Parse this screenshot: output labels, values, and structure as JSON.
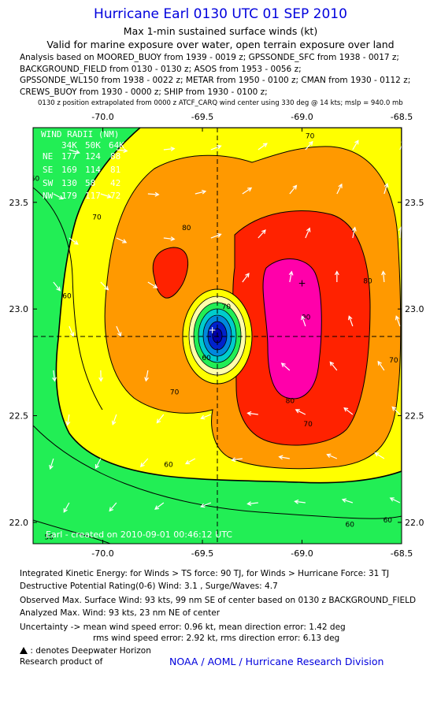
{
  "header": {
    "title": "Hurricane Earl 0130 UTC 01 SEP 2010",
    "subtitle1": "Max 1-min sustained surface winds (kt)",
    "subtitle2": "Valid for marine exposure over water, open terrain exposure over land",
    "analysis_lines": [
      "Analysis based on MOORED_BUOY from 1939 - 0019 z; GPSSONDE_SFC from 1938 - 0017 z;",
      "BACKGROUND_FIELD from 0130 - 0130 z; ASOS from 1953 - 0056 z;",
      "GPSSONDE_WL150 from 1938 - 0022 z; METAR from 1950 - 0100 z; CMAN from 1930 - 0112 z;",
      "CREWS_BUOY from 1930 - 0000 z; SHIP from 1930 - 0100 z;"
    ],
    "position_note": "0130 z position extrapolated from 0000 z ATCF_CARQ wind center using 330 deg @ 14 kts; mslp = 940.0 mb"
  },
  "map": {
    "lon_labels": [
      "-70.0",
      "-69.5",
      "-69.0",
      "-68.5"
    ],
    "lon_values": [
      -70.0,
      -69.5,
      -69.0,
      -68.5
    ],
    "lat_labels": [
      "23.5",
      "23.0",
      "22.5",
      "22.0"
    ],
    "lat_values": [
      23.5,
      23.0,
      22.5,
      22.0
    ],
    "lon_range": [
      -70.35,
      -68.5
    ],
    "lat_range": [
      21.9,
      23.85
    ],
    "center": {
      "lon": -69.45,
      "lat": 22.9
    },
    "max_wind_marker": {
      "lon": -69.0,
      "lat": 23.12
    },
    "contour_labels": [
      {
        "text": "70",
        "lon": -68.96,
        "lat": 23.8
      },
      {
        "text": "70",
        "lon": -70.03,
        "lat": 23.42
      },
      {
        "text": "70",
        "lon": -69.64,
        "lat": 22.6
      },
      {
        "text": "70",
        "lon": -68.97,
        "lat": 22.45
      },
      {
        "text": "70",
        "lon": -68.54,
        "lat": 22.75
      },
      {
        "text": "70",
        "lon": -69.38,
        "lat": 23.0
      },
      {
        "text": "80",
        "lon": -69.58,
        "lat": 23.37
      },
      {
        "text": "80",
        "lon": -69.06,
        "lat": 22.56
      },
      {
        "text": "80",
        "lon": -68.67,
        "lat": 23.12
      },
      {
        "text": "90",
        "lon": -68.98,
        "lat": 22.95
      },
      {
        "text": "60",
        "lon": -69.67,
        "lat": 22.26
      },
      {
        "text": "60",
        "lon": -69.48,
        "lat": 22.76
      },
      {
        "text": "60",
        "lon": -68.76,
        "lat": 21.98
      },
      {
        "text": "60",
        "lon": -68.57,
        "lat": 22.0
      },
      {
        "text": "60",
        "lon": -70.18,
        "lat": 23.05
      },
      {
        "text": "60",
        "lon": -70.34,
        "lat": 23.6
      },
      {
        "text": "50",
        "lon": -70.27,
        "lat": 21.92
      }
    ],
    "credit": "Earl - created on 2010-09-01 00:46:12 UTC",
    "wind_radii": {
      "title": "WIND RADII (NM)",
      "header": [
        "",
        "34K",
        "50K",
        "64K"
      ],
      "rows": [
        [
          "NE",
          "177",
          "124",
          "88"
        ],
        [
          "SE",
          "169",
          "114",
          "81"
        ],
        [
          "SW",
          "130",
          "58",
          "42"
        ],
        [
          "NW",
          "179",
          "117",
          "72"
        ]
      ]
    },
    "colors": {
      "green": "#22ee55",
      "yellow": "#ffff00",
      "orange": "#ff9900",
      "red": "#ff2200",
      "magenta": "#ff00aa",
      "lightyellow": "#ffffaa",
      "cyan": "#00cccc",
      "blue": "#0022cc",
      "navy": "#0000aa"
    }
  },
  "footer": {
    "line1": "Integrated Kinetic Energy:  for Winds > TS force: 90 TJ,  for Winds > Hurricane Force: 31 TJ",
    "line2": "Destructive Potential Rating(0-6)   Wind: 3.1 , Surge/Waves: 4.7",
    "line3": "Observed Max. Surface Wind: 93 kts, 99 nm SE of center based on 0130 z BACKGROUND_FIELD",
    "line4": "Analyzed Max. Wind: 93 kts, 23 nm NE of center",
    "line5": "Uncertainty -> mean wind speed error: 0.96 kt,   mean direction error: 1.42 deg",
    "line6": "rms wind speed error: 2.92 kt,   rms direction error: 6.13 deg",
    "line7": ": denotes Deepwater Horizon",
    "line8": "Research product of",
    "org": "NOAA / AOML / Hurricane Research Division"
  }
}
